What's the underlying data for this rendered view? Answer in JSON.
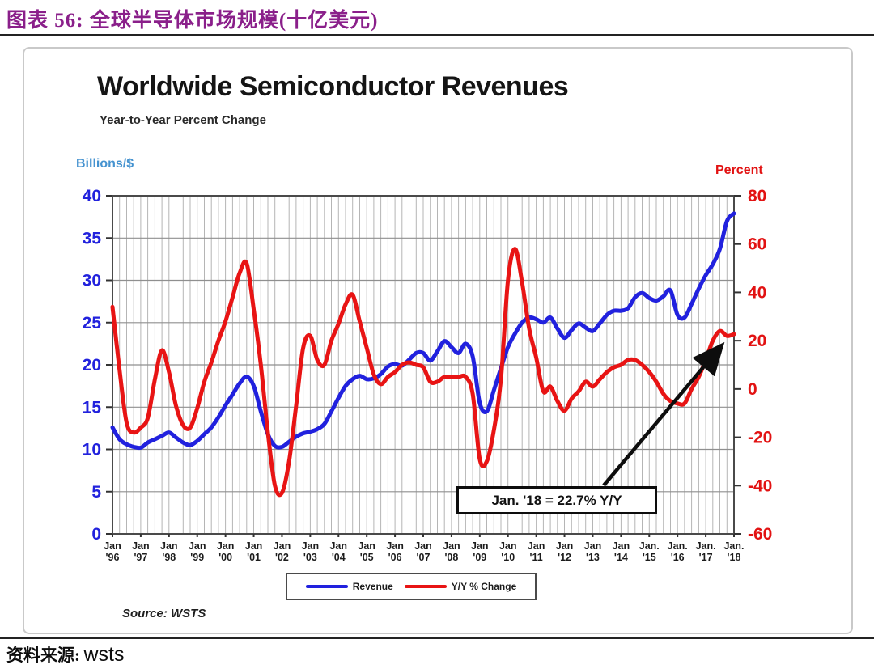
{
  "page": {
    "header_title": "图表 56: 全球半导体市场规模(十亿美元)",
    "footer_source_label": "资料来源:",
    "footer_source_value": "wsts"
  },
  "chart": {
    "title": "Worldwide Semiconductor Revenues",
    "subtitle": "Year-to-Year Percent Change",
    "left_axis_label": "Billions/$",
    "right_axis_label": "Percent",
    "source": "Source: WSTS",
    "annotation_text": "Jan. '18 = 22.7% Y/Y",
    "legend": [
      {
        "label": "Revenue",
        "color": "#2121DE"
      },
      {
        "label": "Y/Y % Change",
        "color": "#E81414"
      }
    ]
  },
  "chart_data": {
    "type": "line",
    "title": "Worldwide Semiconductor Revenues",
    "subtitle": "Year-to-Year Percent Change",
    "x_unit": "quarterly samples, Jan 1996 - Jan 2018",
    "x_tick_labels": [
      [
        "Jan",
        "'96"
      ],
      [
        "Jan",
        "'97"
      ],
      [
        "Jan",
        "'98"
      ],
      [
        "Jan",
        "'99"
      ],
      [
        "Jan",
        "'00"
      ],
      [
        "Jan",
        "'01"
      ],
      [
        "Jan",
        "'02"
      ],
      [
        "Jan",
        "'03"
      ],
      [
        "Jan",
        "'04"
      ],
      [
        "Jan",
        "'05"
      ],
      [
        "Jan",
        "'06"
      ],
      [
        "Jan",
        "'07"
      ],
      [
        "Jan",
        "'08"
      ],
      [
        "Jan",
        "'09"
      ],
      [
        "Jan",
        "'10"
      ],
      [
        "Jan",
        "'11"
      ],
      [
        "Jan",
        "'12"
      ],
      [
        "Jan",
        "'13"
      ],
      [
        "Jan",
        "'14"
      ],
      [
        "Jan.",
        "'15"
      ],
      [
        "Jan.",
        "'16"
      ],
      [
        "Jan.",
        "'17"
      ],
      [
        "Jan.",
        "'18"
      ]
    ],
    "left_axis": {
      "label": "Billions/$",
      "ticks": [
        40,
        35,
        30,
        25,
        20,
        15,
        10,
        5,
        0
      ],
      "range": [
        0,
        40
      ],
      "color": "#2222DD"
    },
    "right_axis": {
      "label": "Percent",
      "ticks": [
        80,
        60,
        40,
        20,
        0,
        -20,
        -40,
        -60
      ],
      "range": [
        -60,
        80
      ],
      "color": "#E21212"
    },
    "grid": {
      "vertical": "quarterly",
      "horizontal": "every 5 (left scale)"
    },
    "legend_position": "bottom-center",
    "series": [
      {
        "name": "Revenue",
        "axis": "left",
        "color": "#2121DE",
        "values": [
          12.6,
          11.2,
          10.6,
          10.3,
          10.2,
          10.8,
          11.2,
          11.6,
          12.0,
          11.4,
          10.8,
          10.5,
          11.0,
          11.8,
          12.6,
          13.8,
          15.2,
          16.5,
          17.8,
          18.6,
          17.5,
          14.5,
          11.8,
          10.4,
          10.3,
          10.9,
          11.5,
          11.9,
          12.1,
          12.4,
          13.0,
          14.5,
          16.1,
          17.5,
          18.3,
          18.7,
          18.3,
          18.4,
          18.9,
          19.8,
          20.1,
          19.9,
          20.6,
          21.4,
          21.4,
          20.5,
          21.6,
          22.8,
          22.1,
          21.4,
          22.5,
          21.0,
          15.5,
          14.5,
          17.0,
          19.6,
          22.1,
          23.7,
          25.0,
          25.6,
          25.4,
          25.0,
          25.6,
          24.3,
          23.2,
          24.1,
          24.9,
          24.4,
          24.0,
          24.9,
          25.9,
          26.4,
          26.4,
          26.7,
          28.0,
          28.5,
          27.9,
          27.6,
          28.1,
          28.8,
          25.9,
          25.6,
          27.2,
          29.0,
          30.6,
          31.9,
          33.7,
          37.0,
          37.9
        ]
      },
      {
        "name": "Y/Y % Change",
        "axis": "right",
        "color": "#E81414",
        "values": [
          34,
          8,
          -14,
          -18,
          -16,
          -12,
          4,
          16,
          7,
          -7,
          -15,
          -16,
          -8,
          3,
          11,
          20,
          28,
          38,
          48,
          52,
          33,
          10,
          -18,
          -40,
          -43,
          -30,
          -7,
          17,
          22,
          12,
          10,
          20,
          27,
          35,
          39,
          28,
          17,
          6,
          2,
          5,
          7,
          10,
          11,
          10,
          9,
          3,
          3,
          5,
          5,
          5,
          5,
          -2,
          -29,
          -30,
          -17,
          4,
          45,
          58,
          44,
          25,
          13,
          -1,
          1,
          -5,
          -9,
          -4,
          -1,
          3,
          1,
          4,
          7,
          9,
          10,
          12,
          12,
          10,
          7,
          3,
          -2,
          -5,
          -6,
          -6,
          0,
          5,
          12,
          20,
          24,
          22,
          22.7
        ]
      }
    ],
    "annotation": {
      "text": "Jan. '18 = 22.7% Y/Y",
      "points_to": "red series endpoint Jan 2018 = 22.7%"
    },
    "source": "Source: WSTS"
  }
}
